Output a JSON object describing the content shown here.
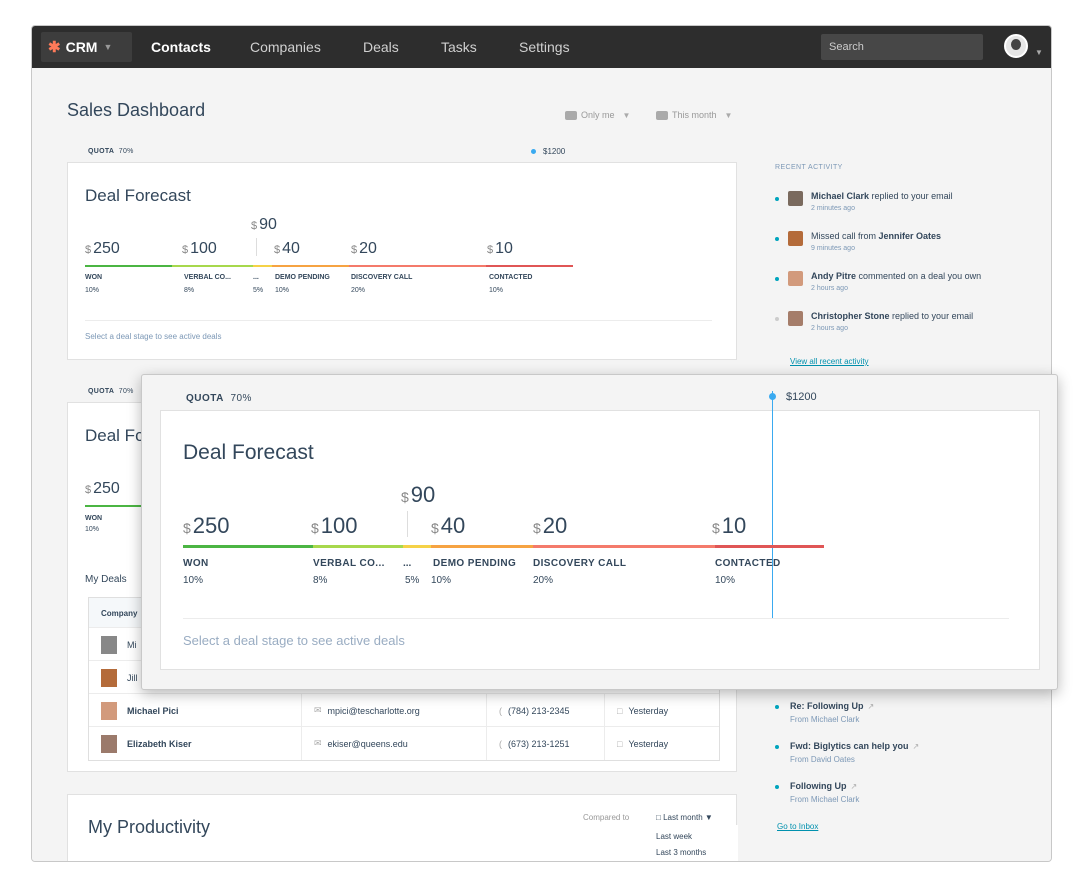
{
  "nav": {
    "brand": "CRM",
    "links": [
      "Contacts",
      "Companies",
      "Deals",
      "Tasks",
      "Settings"
    ],
    "search_placeholder": "Search"
  },
  "page": {
    "title": "Sales Dashboard",
    "filter_owner": "Only me",
    "filter_period": "This month"
  },
  "quota": {
    "label": "QUOTA",
    "pct": "70%",
    "target": "$1200",
    "progress": 0.7
  },
  "forecast": {
    "title": "Deal Forecast",
    "hint": "Select a deal stage to see active deals",
    "stages": [
      {
        "amount": "250",
        "label": "WON",
        "pct": "10%",
        "color": "#4bb543"
      },
      {
        "amount": "100",
        "label": "VERBAL CO...",
        "pct": "8%",
        "color": "#a7d84c"
      },
      {
        "amount": "90",
        "label": "...",
        "pct": "5%",
        "color": "#f5d247"
      },
      {
        "amount": "40",
        "label": "DEMO PENDING",
        "pct": "10%",
        "color": "#f6a342"
      },
      {
        "amount": "20",
        "label": "DISCOVERY CALL",
        "pct": "20%",
        "color": "#f47a6b"
      },
      {
        "amount": "10",
        "label": "CONTACTED",
        "pct": "10%",
        "color": "#e05656"
      }
    ]
  },
  "recent_activity": {
    "title": "RECENT ACTIVITY",
    "items": [
      {
        "who": "Michael Clark",
        "text": "replied to your email",
        "when": "2 minutes ago"
      },
      {
        "who": "",
        "text": "Missed call from ",
        "who2": "Jennifer Oates",
        "when": "9 minutes ago"
      },
      {
        "who": "Andy Pitre",
        "text": "commented on a deal you own",
        "when": "2 hours ago"
      },
      {
        "who": "Christopher Stone",
        "text": "replied to your email",
        "when": "2 hours ago"
      }
    ],
    "view_all": "View all recent activity"
  },
  "second_card": {
    "quota_label": "QUOTA",
    "quota_pct": "70%",
    "title": "Deal Fc",
    "amount": "250",
    "won": "WON",
    "won_pct": "10%",
    "deals_title": "My Deals",
    "company_col": "Company"
  },
  "deals_table": {
    "rows": [
      {
        "name": "Mi",
        "email": "",
        "phone": "",
        "date": ""
      },
      {
        "name": "Jill",
        "email": "",
        "phone": "",
        "date": ""
      },
      {
        "name": "Michael Pici",
        "email": "mpici@tescharlotte.org",
        "phone": "(784) 213-2345",
        "date": "Yesterday"
      },
      {
        "name": "Elizabeth Kiser",
        "email": "ekiser@queens.edu",
        "phone": "(673) 213-1251",
        "date": "Yesterday"
      }
    ]
  },
  "inbox": {
    "items": [
      {
        "subject": "Re: Following Up",
        "from": "From Michael Clark"
      },
      {
        "subject": "Fwd: Biglytics can help you",
        "from": "From David Oates"
      },
      {
        "subject": "Following Up",
        "from": "From Michael Clark"
      }
    ],
    "go": "Go to Inbox"
  },
  "productivity": {
    "title": "My Productivity",
    "compared": "Compared to",
    "selected": "Last month",
    "options": [
      "Last week",
      "Last 3 months"
    ]
  },
  "currency_symbol": "$",
  "colors": {
    "accent": "#00a4bd",
    "quota": "#3aaaf0",
    "brand": "#ff7a59"
  }
}
